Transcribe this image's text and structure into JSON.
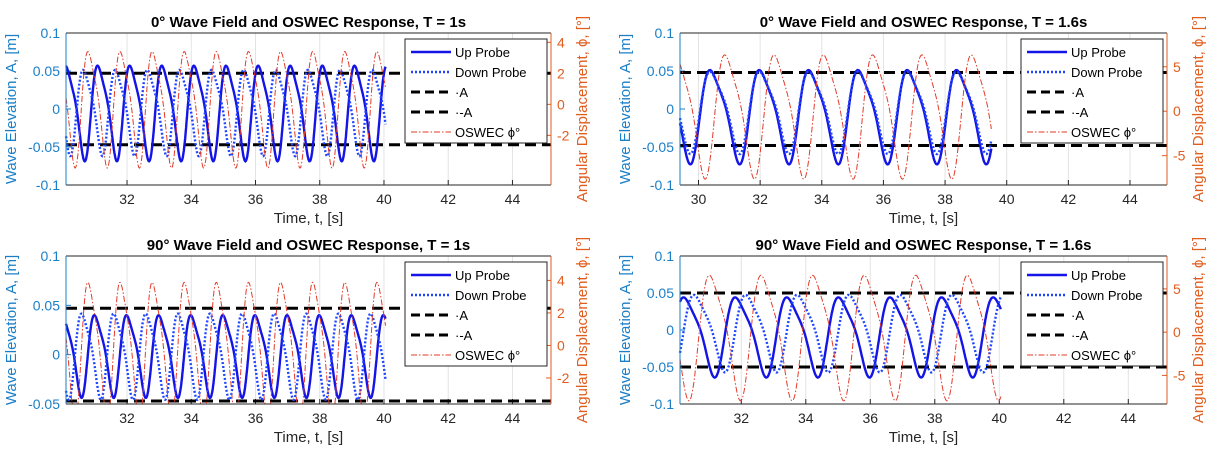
{
  "legend_labels": [
    "Up Probe",
    "Down Probe",
    "·A",
    "·-A",
    "OSWEC ϕ°"
  ],
  "colors": {
    "up": "#1414e6",
    "down": "#1e46ff",
    "amp": "#000000",
    "oswec": "#e23b2a",
    "left_axis": "#1b7fc8",
    "right_axis": "#e05d1f"
  },
  "chart_data": [
    {
      "type": "line",
      "title": "0° Wave Field and OSWEC Response, T = 1s",
      "xlabel": "Time, t, [s]",
      "ylabel": "Wave Elevation, A, [m]",
      "y2label": "Angular Displacement, ϕ, [°]",
      "xlim": [
        30.1,
        45.2
      ],
      "ylim": [
        -0.1,
        0.1
      ],
      "y2lim": [
        -5.2,
        4.6
      ],
      "xticks": [
        "32",
        "34",
        "36",
        "38",
        "40",
        "42",
        "44"
      ],
      "yticks": [
        "0.1",
        "0.05",
        "0",
        "-0.05",
        "-0.1"
      ],
      "y2ticks": [
        "4",
        "2",
        "0",
        "-2"
      ],
      "A": 0.047,
      "series": [
        {
          "name": "Up Probe",
          "x_start": 30.1,
          "x_end": 40.05,
          "period": 1.0,
          "amplitude": 0.072,
          "mean": 0.0,
          "phase": 0.1,
          "axis": "left"
        },
        {
          "name": "Down Probe",
          "x_start": 30.1,
          "x_end": 40.05,
          "period": 1.0,
          "amplitude": 0.065,
          "mean": 0.0,
          "phase": 0.55,
          "axis": "left"
        },
        {
          "name": "OSWEC ϕ°",
          "x_start": 30.1,
          "x_end": 40.05,
          "period": 1.0,
          "amplitude": 4.3,
          "mean": 0.0,
          "phase": 0.4,
          "axis": "right"
        }
      ]
    },
    {
      "type": "line",
      "title": "0° Wave Field and OSWEC Response, T = 1.6s",
      "xlabel": "Time, t, [s]",
      "ylabel": "Wave Elevation, A, [m]",
      "y2label": "Angular Displacement, ϕ, [°]",
      "xlim": [
        29.4,
        45.2
      ],
      "ylim": [
        -0.1,
        0.1
      ],
      "y2lim": [
        -8.3,
        8.8
      ],
      "xticks": [
        "30",
        "32",
        "34",
        "36",
        "38",
        "40",
        "42",
        "44"
      ],
      "yticks": [
        "0.1",
        "0.05",
        "0",
        "-0.05",
        "-0.1"
      ],
      "y2ticks": [
        "5",
        "0",
        "-5"
      ],
      "A": 0.048,
      "series": [
        {
          "name": "Up Probe",
          "x_start": 29.4,
          "x_end": 39.5,
          "period": 1.6,
          "amplitude": 0.071,
          "mean": -0.005,
          "phase": 0.2,
          "axis": "left"
        },
        {
          "name": "Down Probe",
          "x_start": 29.4,
          "x_end": 39.5,
          "period": 1.6,
          "amplitude": 0.062,
          "mean": 0.0,
          "phase": 1.2,
          "axis": "left"
        },
        {
          "name": "OSWEC ϕ°",
          "x_start": 29.4,
          "x_end": 39.5,
          "period": 1.6,
          "amplitude": 8.0,
          "mean": 0.0,
          "phase": 0.9,
          "axis": "right"
        }
      ]
    },
    {
      "type": "line",
      "title": "90° Wave Field and OSWEC Response, T = 1s",
      "xlabel": "Time, t, [s]",
      "ylabel": "Wave Elevation, A, [m]",
      "y2label": "Angular Displacement, ϕ, [°]",
      "xlim": [
        30.1,
        45.2
      ],
      "ylim": [
        -0.05,
        0.1
      ],
      "y2lim": [
        -3.6,
        5.5
      ],
      "xticks": [
        "32",
        "34",
        "36",
        "38",
        "40",
        "42",
        "44"
      ],
      "yticks": [
        "0.1",
        "0.05",
        "0",
        "-0.05"
      ],
      "y2ticks": [
        "4",
        "2",
        "0",
        "-2"
      ],
      "A": 0.047,
      "series": [
        {
          "name": "Up Probe",
          "x_start": 30.1,
          "x_end": 40.05,
          "period": 1.0,
          "amplitude": 0.048,
          "mean": 0.002,
          "phase": 0.2,
          "axis": "left"
        },
        {
          "name": "Down Probe",
          "x_start": 30.1,
          "x_end": 40.05,
          "period": 1.0,
          "amplitude": 0.05,
          "mean": 0.002,
          "phase": 0.6,
          "axis": "left"
        },
        {
          "name": "OSWEC ϕ°",
          "x_start": 30.1,
          "x_end": 40.05,
          "period": 1.0,
          "amplitude": 4.9,
          "mean": 0.0,
          "phase": 0.4,
          "axis": "right"
        }
      ]
    },
    {
      "type": "line",
      "title": "90° Wave Field and OSWEC Response, T = 1.6s",
      "xlabel": "Time, t, [s]",
      "ylabel": "Wave Elevation, A, [m]",
      "y2label": "Angular Displacement, ϕ, [°]",
      "xlim": [
        30.1,
        45.2
      ],
      "ylim": [
        -0.1,
        0.1
      ],
      "y2lim": [
        -8.3,
        8.8
      ],
      "xticks": [
        "32",
        "34",
        "36",
        "38",
        "40",
        "42",
        "44"
      ],
      "yticks": [
        "0.1",
        "0.05",
        "0",
        "-0.05",
        "-0.1"
      ],
      "y2ticks": [
        "5",
        "0",
        "-5"
      ],
      "A": 0.05,
      "series": [
        {
          "name": "Up Probe",
          "x_start": 30.1,
          "x_end": 40.05,
          "period": 1.6,
          "amplitude": 0.062,
          "mean": -0.005,
          "phase": 0.3,
          "axis": "left"
        },
        {
          "name": "Down Probe",
          "x_start": 30.1,
          "x_end": 40.05,
          "period": 1.6,
          "amplitude": 0.06,
          "mean": 0.0,
          "phase": 1.1,
          "axis": "left"
        },
        {
          "name": "OSWEC ϕ°",
          "x_start": 30.1,
          "x_end": 40.05,
          "period": 1.6,
          "amplitude": 8.3,
          "mean": 0.0,
          "phase": 0.8,
          "axis": "right"
        }
      ]
    }
  ]
}
